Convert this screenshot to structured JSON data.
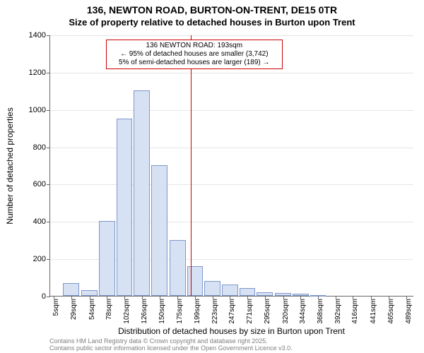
{
  "title": "136, NEWTON ROAD, BURTON-ON-TRENT, DE15 0TR",
  "subtitle": "Size of property relative to detached houses in Burton upon Trent",
  "title_fontsize": 14,
  "subtitle_fontsize": 13,
  "ylabel": "Number of detached properties",
  "xlabel": "Distribution of detached houses by size in Burton upon Trent",
  "chart": {
    "type": "histogram",
    "xlim": [
      0,
      500
    ],
    "ylim": [
      0,
      1400
    ],
    "ytick_step": 200,
    "grid_color": "#e6e6e6",
    "axis_color": "#666666",
    "background_color": "#ffffff",
    "bar_fill": "#d6e1f3",
    "bar_stroke": "#7f97c9",
    "bar_width_ratio": 0.92,
    "bins": [
      {
        "x": 5,
        "label": "5sqm",
        "value": 0
      },
      {
        "x": 29,
        "label": "29sqm",
        "value": 70
      },
      {
        "x": 54,
        "label": "54sqm",
        "value": 30
      },
      {
        "x": 78,
        "label": "78sqm",
        "value": 400
      },
      {
        "x": 102,
        "label": "102sqm",
        "value": 950
      },
      {
        "x": 126,
        "label": "126sqm",
        "value": 1100
      },
      {
        "x": 150,
        "label": "150sqm",
        "value": 700
      },
      {
        "x": 175,
        "label": "175sqm",
        "value": 300
      },
      {
        "x": 199,
        "label": "199sqm",
        "value": 160
      },
      {
        "x": 223,
        "label": "223sqm",
        "value": 80
      },
      {
        "x": 247,
        "label": "247sqm",
        "value": 60
      },
      {
        "x": 271,
        "label": "271sqm",
        "value": 40
      },
      {
        "x": 295,
        "label": "295sqm",
        "value": 20
      },
      {
        "x": 320,
        "label": "320sqm",
        "value": 15
      },
      {
        "x": 344,
        "label": "344sqm",
        "value": 10
      },
      {
        "x": 368,
        "label": "368sqm",
        "value": 5
      },
      {
        "x": 392,
        "label": "392sqm",
        "value": 0
      },
      {
        "x": 416,
        "label": "416sqm",
        "value": 0
      },
      {
        "x": 441,
        "label": "441sqm",
        "value": 0
      },
      {
        "x": 465,
        "label": "465sqm",
        "value": 0
      },
      {
        "x": 489,
        "label": "489sqm",
        "value": 0
      }
    ],
    "marker": {
      "x": 193,
      "color": "#cc0000"
    },
    "annotation": {
      "border_color": "#cc0000",
      "lines": [
        "136 NEWTON ROAD: 193sqm",
        "← 95% of detached houses are smaller (3,742)",
        "5% of semi-detached houses are larger (189) →"
      ]
    }
  },
  "footer": {
    "line1": "Contains HM Land Registry data © Crown copyright and database right 2025.",
    "line2": "Contains public sector information licensed under the Open Government Licence v3.0."
  }
}
